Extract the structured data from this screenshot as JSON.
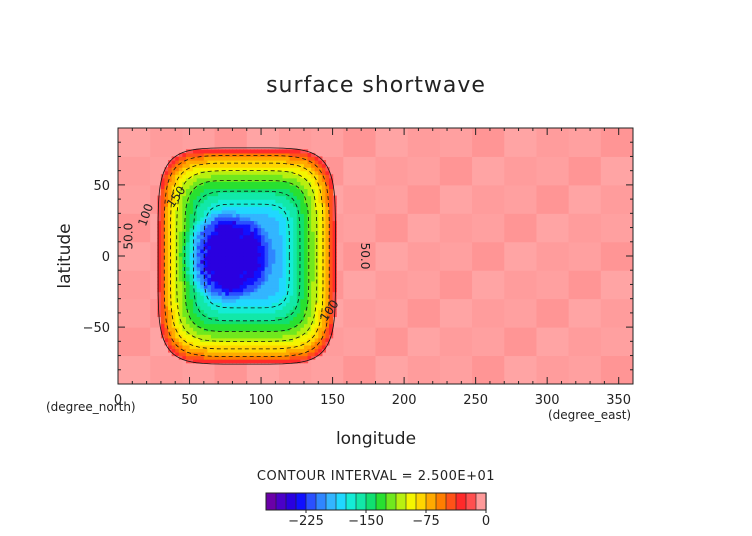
{
  "chart_data": {
    "type": "heatmap",
    "title": "surface shortwave",
    "xlabel": "longitude",
    "ylabel": "latitude",
    "x_unit": "(degree_east)",
    "y_unit": "(degree_north)",
    "xlim": [
      0,
      360
    ],
    "ylim": [
      -90,
      90
    ],
    "x_ticks": [
      "0",
      "50",
      "100",
      "150",
      "200",
      "250",
      "300",
      "350"
    ],
    "y_ticks": [
      "50",
      "0",
      "−50"
    ],
    "contour_interval_text": "CONTOUR INTERVAL = 2.500E+01",
    "contour_labels": [
      "50.0",
      "100",
      "150",
      "50.0",
      "100"
    ],
    "colorbar": {
      "tick_labels": [
        "−225",
        "−150",
        "−75",
        "0"
      ],
      "tick_values": [
        -225,
        -150,
        -75,
        0
      ],
      "levels": [
        -275,
        -262.5,
        -250,
        -237.5,
        -225,
        -212.5,
        -200,
        -187.5,
        -175,
        -162.5,
        -150,
        -137.5,
        -125,
        -112.5,
        -100,
        -87.5,
        -75,
        -62.5,
        -50,
        -37.5,
        -25,
        -12.5,
        0
      ],
      "colors": [
        "#6a00a8",
        "#4b00c8",
        "#2a00e0",
        "#1010ff",
        "#2a50ff",
        "#2f86ff",
        "#33b5ff",
        "#20d8ff",
        "#14ecd6",
        "#12e8a8",
        "#10e070",
        "#28e030",
        "#70e81e",
        "#b8f010",
        "#f5f500",
        "#ffd600",
        "#ffaa00",
        "#ff7e00",
        "#ff5218",
        "#ff2a2a",
        "#ff4f4f",
        "#ff9a9a"
      ]
    },
    "field": {
      "center_lon": 90,
      "center_lat": 0,
      "min_value": -250,
      "background_value": -5
    }
  }
}
